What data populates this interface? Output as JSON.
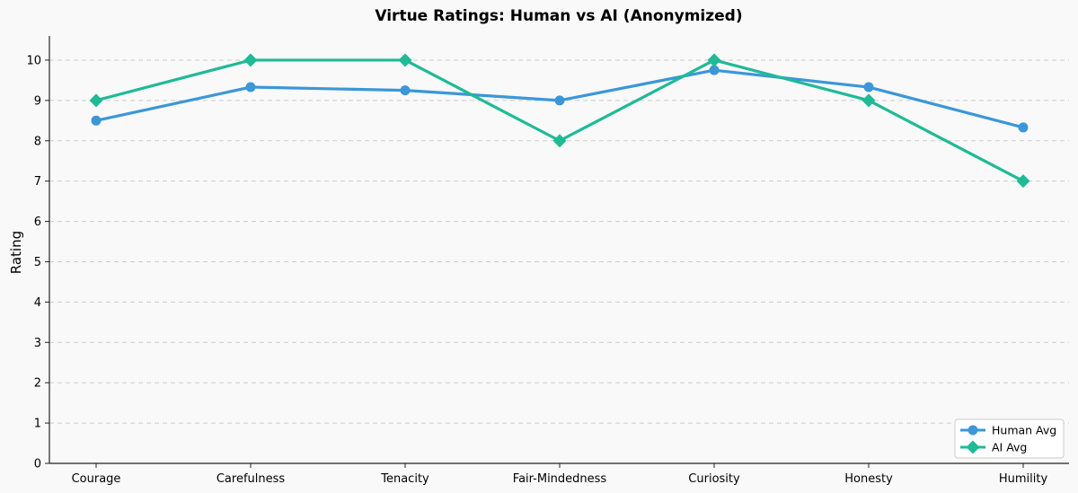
{
  "chart_data": {
    "type": "line",
    "title": "Virtue Ratings: Human vs AI (Anonymized)",
    "xlabel": "",
    "ylabel": "Rating",
    "categories": [
      "Courage",
      "Carefulness",
      "Tenacity",
      "Fair-Mindedness",
      "Curiosity",
      "Honesty",
      "Humility"
    ],
    "ylim": [
      0,
      10.6
    ],
    "yticks": [
      0,
      1,
      2,
      3,
      4,
      5,
      6,
      7,
      8,
      9,
      10
    ],
    "grid": "horizontal dashed",
    "legend_position": "bottom-right",
    "series": [
      {
        "name": "Human Avg",
        "color": "#3b97d8",
        "marker": "circle",
        "values": [
          8.5,
          9.33,
          9.25,
          9.0,
          9.75,
          9.33,
          8.33
        ]
      },
      {
        "name": "AI Avg",
        "color": "#1fba96",
        "marker": "diamond",
        "values": [
          9,
          10,
          10,
          8,
          10,
          9,
          7
        ]
      }
    ]
  }
}
